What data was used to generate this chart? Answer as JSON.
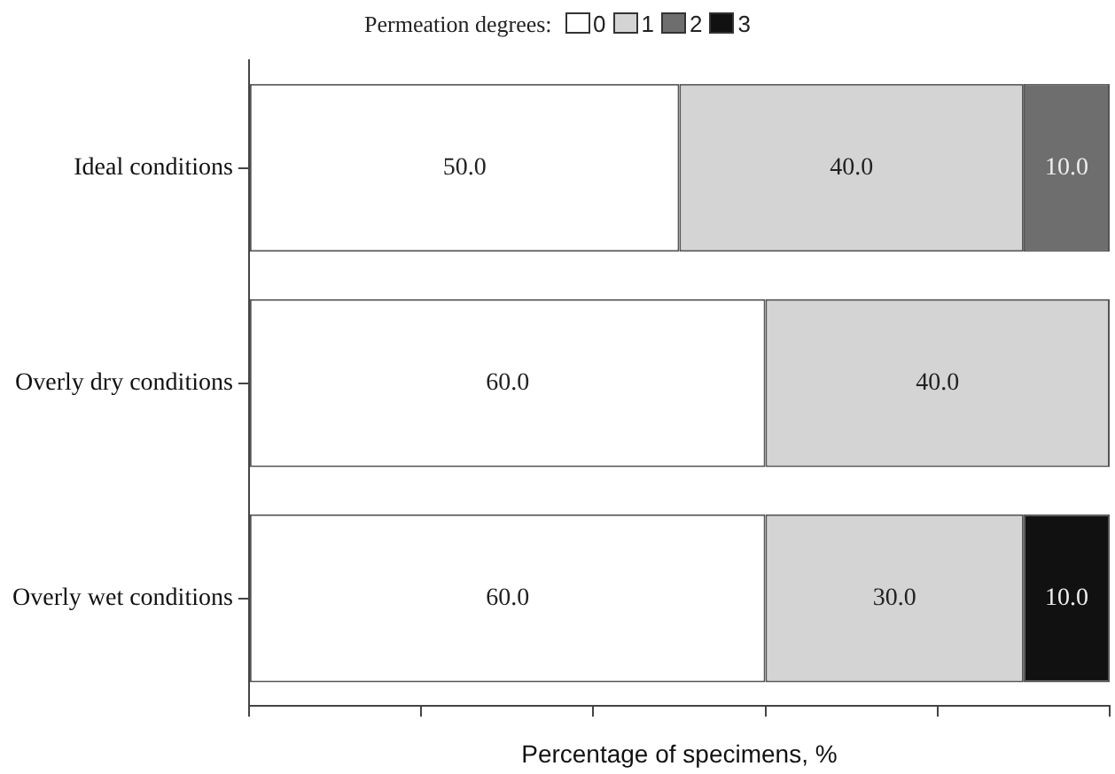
{
  "chart_data": {
    "type": "bar",
    "orientation": "horizontal",
    "stacked": true,
    "legend_title": "Permeation degrees:",
    "legend": "top",
    "xlabel": "Percentage of specimens, %",
    "categories": [
      "Ideal conditions",
      "Overly dry conditions",
      "Overly wet conditions"
    ],
    "series": [
      {
        "name": "0",
        "color": "#ffffff",
        "values": [
          50,
          60,
          60
        ],
        "value_labels": [
          "50.0",
          "60.0",
          "60.0"
        ]
      },
      {
        "name": "1",
        "color": "#d4d4d4",
        "values": [
          40,
          40,
          30
        ],
        "value_labels": [
          "40.0",
          "40.0",
          "30.0"
        ]
      },
      {
        "name": "2",
        "color": "#6e6e6e",
        "values": [
          10,
          0,
          0
        ],
        "value_labels": [
          "10.0",
          null,
          null
        ]
      },
      {
        "name": "3",
        "color": "#111111",
        "values": [
          0,
          0,
          10
        ],
        "value_labels": [
          null,
          null,
          "10.0"
        ]
      }
    ],
    "xlim": [
      0,
      100
    ],
    "xticks": [
      {
        "value": 0,
        "label": null
      },
      {
        "value": 20,
        "label": null
      },
      {
        "value": 40,
        "label": null
      },
      {
        "value": 60,
        "label": null
      },
      {
        "value": 80,
        "label": null
      },
      {
        "value": 100,
        "label": null
      }
    ],
    "tick_labels": "y",
    "grid": false
  }
}
